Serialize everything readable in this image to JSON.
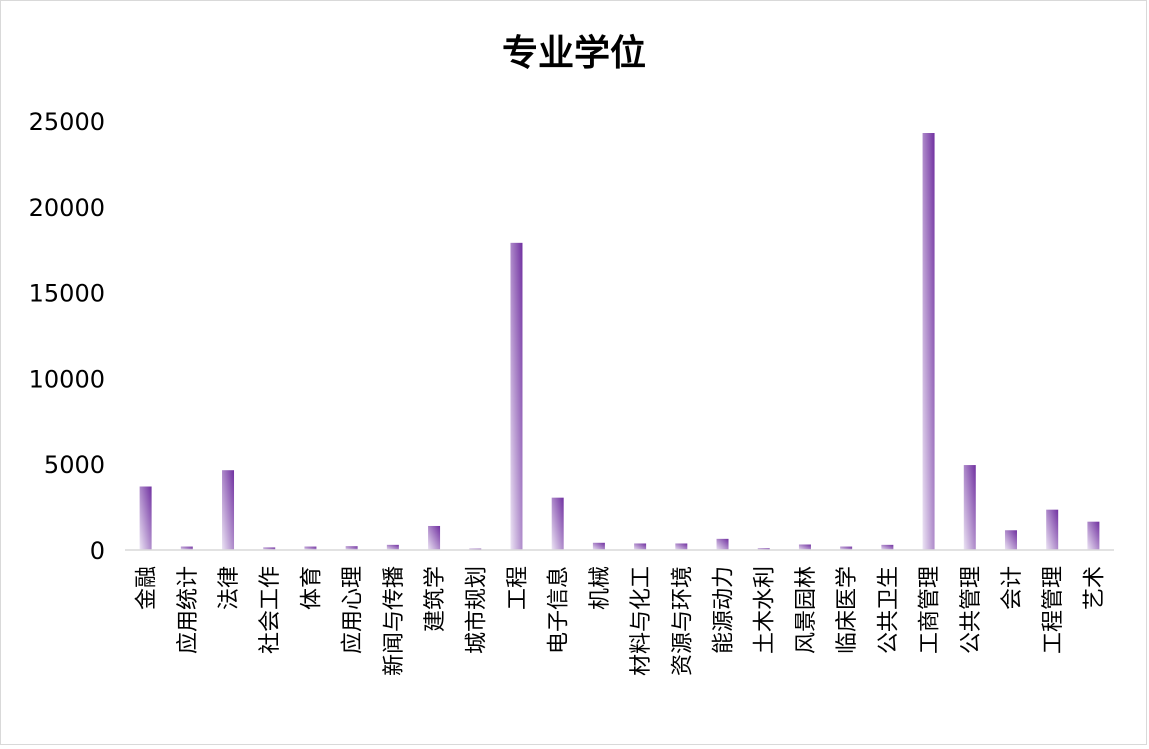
{
  "chart_data": {
    "type": "bar",
    "title": "专业学位",
    "xlabel": "",
    "ylabel": "",
    "ylim": [
      0,
      25000
    ],
    "yticks": [
      0,
      5000,
      10000,
      15000,
      20000,
      25000
    ],
    "grid": false,
    "legend": "none",
    "categories": [
      "金融",
      "应用统计",
      "法律",
      "社会工作",
      "体育",
      "应用心理",
      "新闻与传播",
      "建筑学",
      "城市规划",
      "工程",
      "电子信息",
      "机械",
      "材料与化工",
      "资源与环境",
      "能源动力",
      "土木水利",
      "风景园林",
      "临床医学",
      "公共卫生",
      "工商管理",
      "公共管理",
      "会计",
      "工程管理",
      "艺术"
    ],
    "values": [
      3700,
      200,
      4650,
      150,
      200,
      220,
      300,
      1400,
      80,
      17900,
      3050,
      420,
      380,
      380,
      650,
      100,
      320,
      200,
      300,
      24300,
      4950,
      1150,
      2350,
      1650
    ],
    "colors": {
      "bar_dark": "#7030a0",
      "bar_light": "#ece4f4",
      "axis": "#d9d9d9",
      "frame": "#d9d9d9"
    }
  }
}
